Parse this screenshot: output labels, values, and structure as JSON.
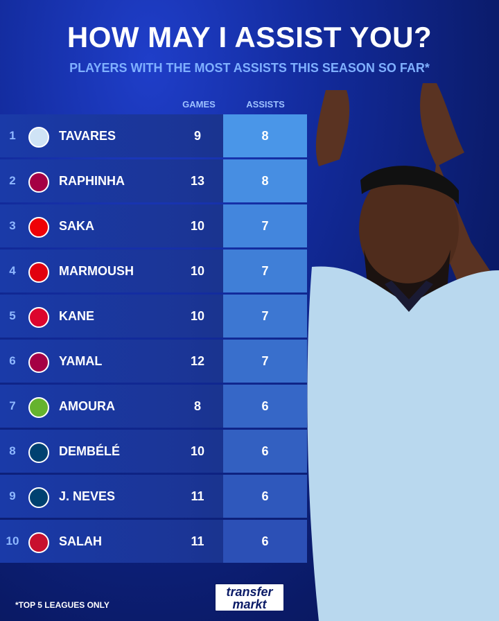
{
  "header": {
    "title": "HOW MAY I ASSIST YOU?",
    "subtitle": "PLAYERS WITH THE MOST ASSISTS THIS SEASON SO FAR*"
  },
  "table": {
    "columns": [
      "GAMES",
      "ASSISTS"
    ],
    "rows": [
      {
        "rank": 1,
        "player": "TAVARES",
        "games": 9,
        "assists": 8
      },
      {
        "rank": 2,
        "player": "RAPHINHA",
        "games": 13,
        "assists": 8
      },
      {
        "rank": 3,
        "player": "SAKA",
        "games": 10,
        "assists": 7
      },
      {
        "rank": 4,
        "player": "MARMOUSH",
        "games": 10,
        "assists": 7
      },
      {
        "rank": 5,
        "player": "KANE",
        "games": 10,
        "assists": 7
      },
      {
        "rank": 6,
        "player": "YAMAL",
        "games": 12,
        "assists": 7
      },
      {
        "rank": 7,
        "player": "AMOURA",
        "games": 8,
        "assists": 6
      },
      {
        "rank": 8,
        "player": "DEMBÉLÉ",
        "games": 10,
        "assists": 6
      },
      {
        "rank": 9,
        "player": "J. NEVES",
        "games": 11,
        "assists": 6
      },
      {
        "rank": 10,
        "player": "SALAH",
        "games": 11,
        "assists": 6
      }
    ]
  },
  "footer": {
    "note": "*TOP 5 LEAGUES ONLY",
    "brand": [
      "transfer",
      "markt"
    ]
  }
}
